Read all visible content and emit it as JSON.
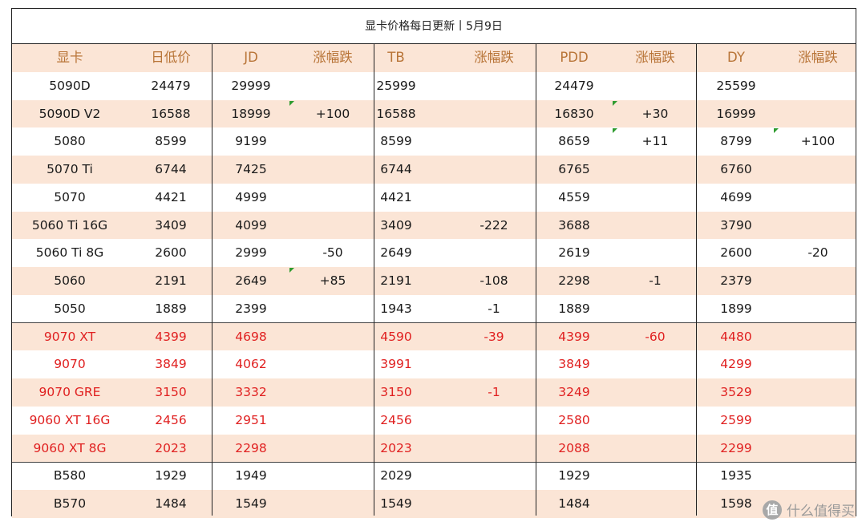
{
  "title": "显卡价格每日更新丨5月9日",
  "headers": [
    "显卡",
    "日低价",
    "JD",
    "涨幅跌",
    "TB",
    "涨幅跌",
    "PDD",
    "涨幅跌",
    "DY",
    "涨幅跌"
  ],
  "groups": [
    {
      "name": "nvidia",
      "rows": [
        {
          "cells": [
            "5090D",
            "24479",
            "29999",
            "",
            "25999",
            "",
            "24479",
            "",
            "25599",
            ""
          ]
        },
        {
          "cells": [
            "5090D V2",
            "16588",
            "18999",
            "+100",
            "16588",
            "",
            "16830",
            "+30",
            "16999",
            ""
          ]
        },
        {
          "cells": [
            "5080",
            "8599",
            "9199",
            "",
            "8599",
            "",
            "8659",
            "+11",
            "8799",
            "+100"
          ]
        },
        {
          "cells": [
            "5070 Ti",
            "6744",
            "7425",
            "",
            "6744",
            "",
            "6765",
            "",
            "6760",
            ""
          ]
        },
        {
          "cells": [
            "5070",
            "4421",
            "4999",
            "",
            "4421",
            "",
            "4559",
            "",
            "4699",
            ""
          ]
        },
        {
          "cells": [
            "5060 Ti 16G",
            "3409",
            "4099",
            "",
            "3409",
            "-222",
            "3688",
            "",
            "3790",
            ""
          ]
        },
        {
          "cells": [
            "5060 Ti 8G",
            "2600",
            "2999",
            "-50",
            "2649",
            "",
            "2619",
            "",
            "2600",
            "-20"
          ]
        },
        {
          "cells": [
            "5060",
            "2191",
            "2649",
            "+85",
            "2191",
            "-108",
            "2298",
            "-1",
            "2379",
            ""
          ]
        },
        {
          "cells": [
            "5050",
            "1889",
            "2399",
            "",
            "1943",
            "-1",
            "1889",
            "",
            "1899",
            ""
          ]
        }
      ]
    },
    {
      "name": "amd",
      "color": "#e02020",
      "rows": [
        {
          "cells": [
            "9070 XT",
            "4399",
            "4698",
            "",
            "4590",
            "-39",
            "4399",
            "-60",
            "4480",
            ""
          ]
        },
        {
          "cells": [
            "9070",
            "3849",
            "4062",
            "",
            "3991",
            "",
            "3849",
            "",
            "4299",
            ""
          ]
        },
        {
          "cells": [
            "9070 GRE",
            "3150",
            "3332",
            "",
            "3150",
            "-1",
            "3249",
            "",
            "3529",
            ""
          ]
        },
        {
          "cells": [
            "9060 XT 16G",
            "2456",
            "2951",
            "",
            "2456",
            "",
            "2580",
            "",
            "2599",
            ""
          ]
        },
        {
          "cells": [
            "9060 XT 8G",
            "2023",
            "2298",
            "",
            "2023",
            "",
            "2088",
            "",
            "2299",
            ""
          ]
        }
      ]
    },
    {
      "name": "intel",
      "rows": [
        {
          "cells": [
            "B580",
            "1929",
            "1949",
            "",
            "2029",
            "",
            "1929",
            "",
            "1935",
            ""
          ]
        },
        {
          "cells": [
            "B570",
            "1484",
            "1549",
            "",
            "1549",
            "",
            "1484",
            "",
            "1598",
            ""
          ]
        }
      ]
    }
  ],
  "watermark": {
    "logo": "值",
    "text": "什么值得买"
  },
  "colors": {
    "header_text": "#b87437",
    "shade": "#fbe5d6",
    "amd_text": "#e02020",
    "flag": "#2e9b2e"
  }
}
